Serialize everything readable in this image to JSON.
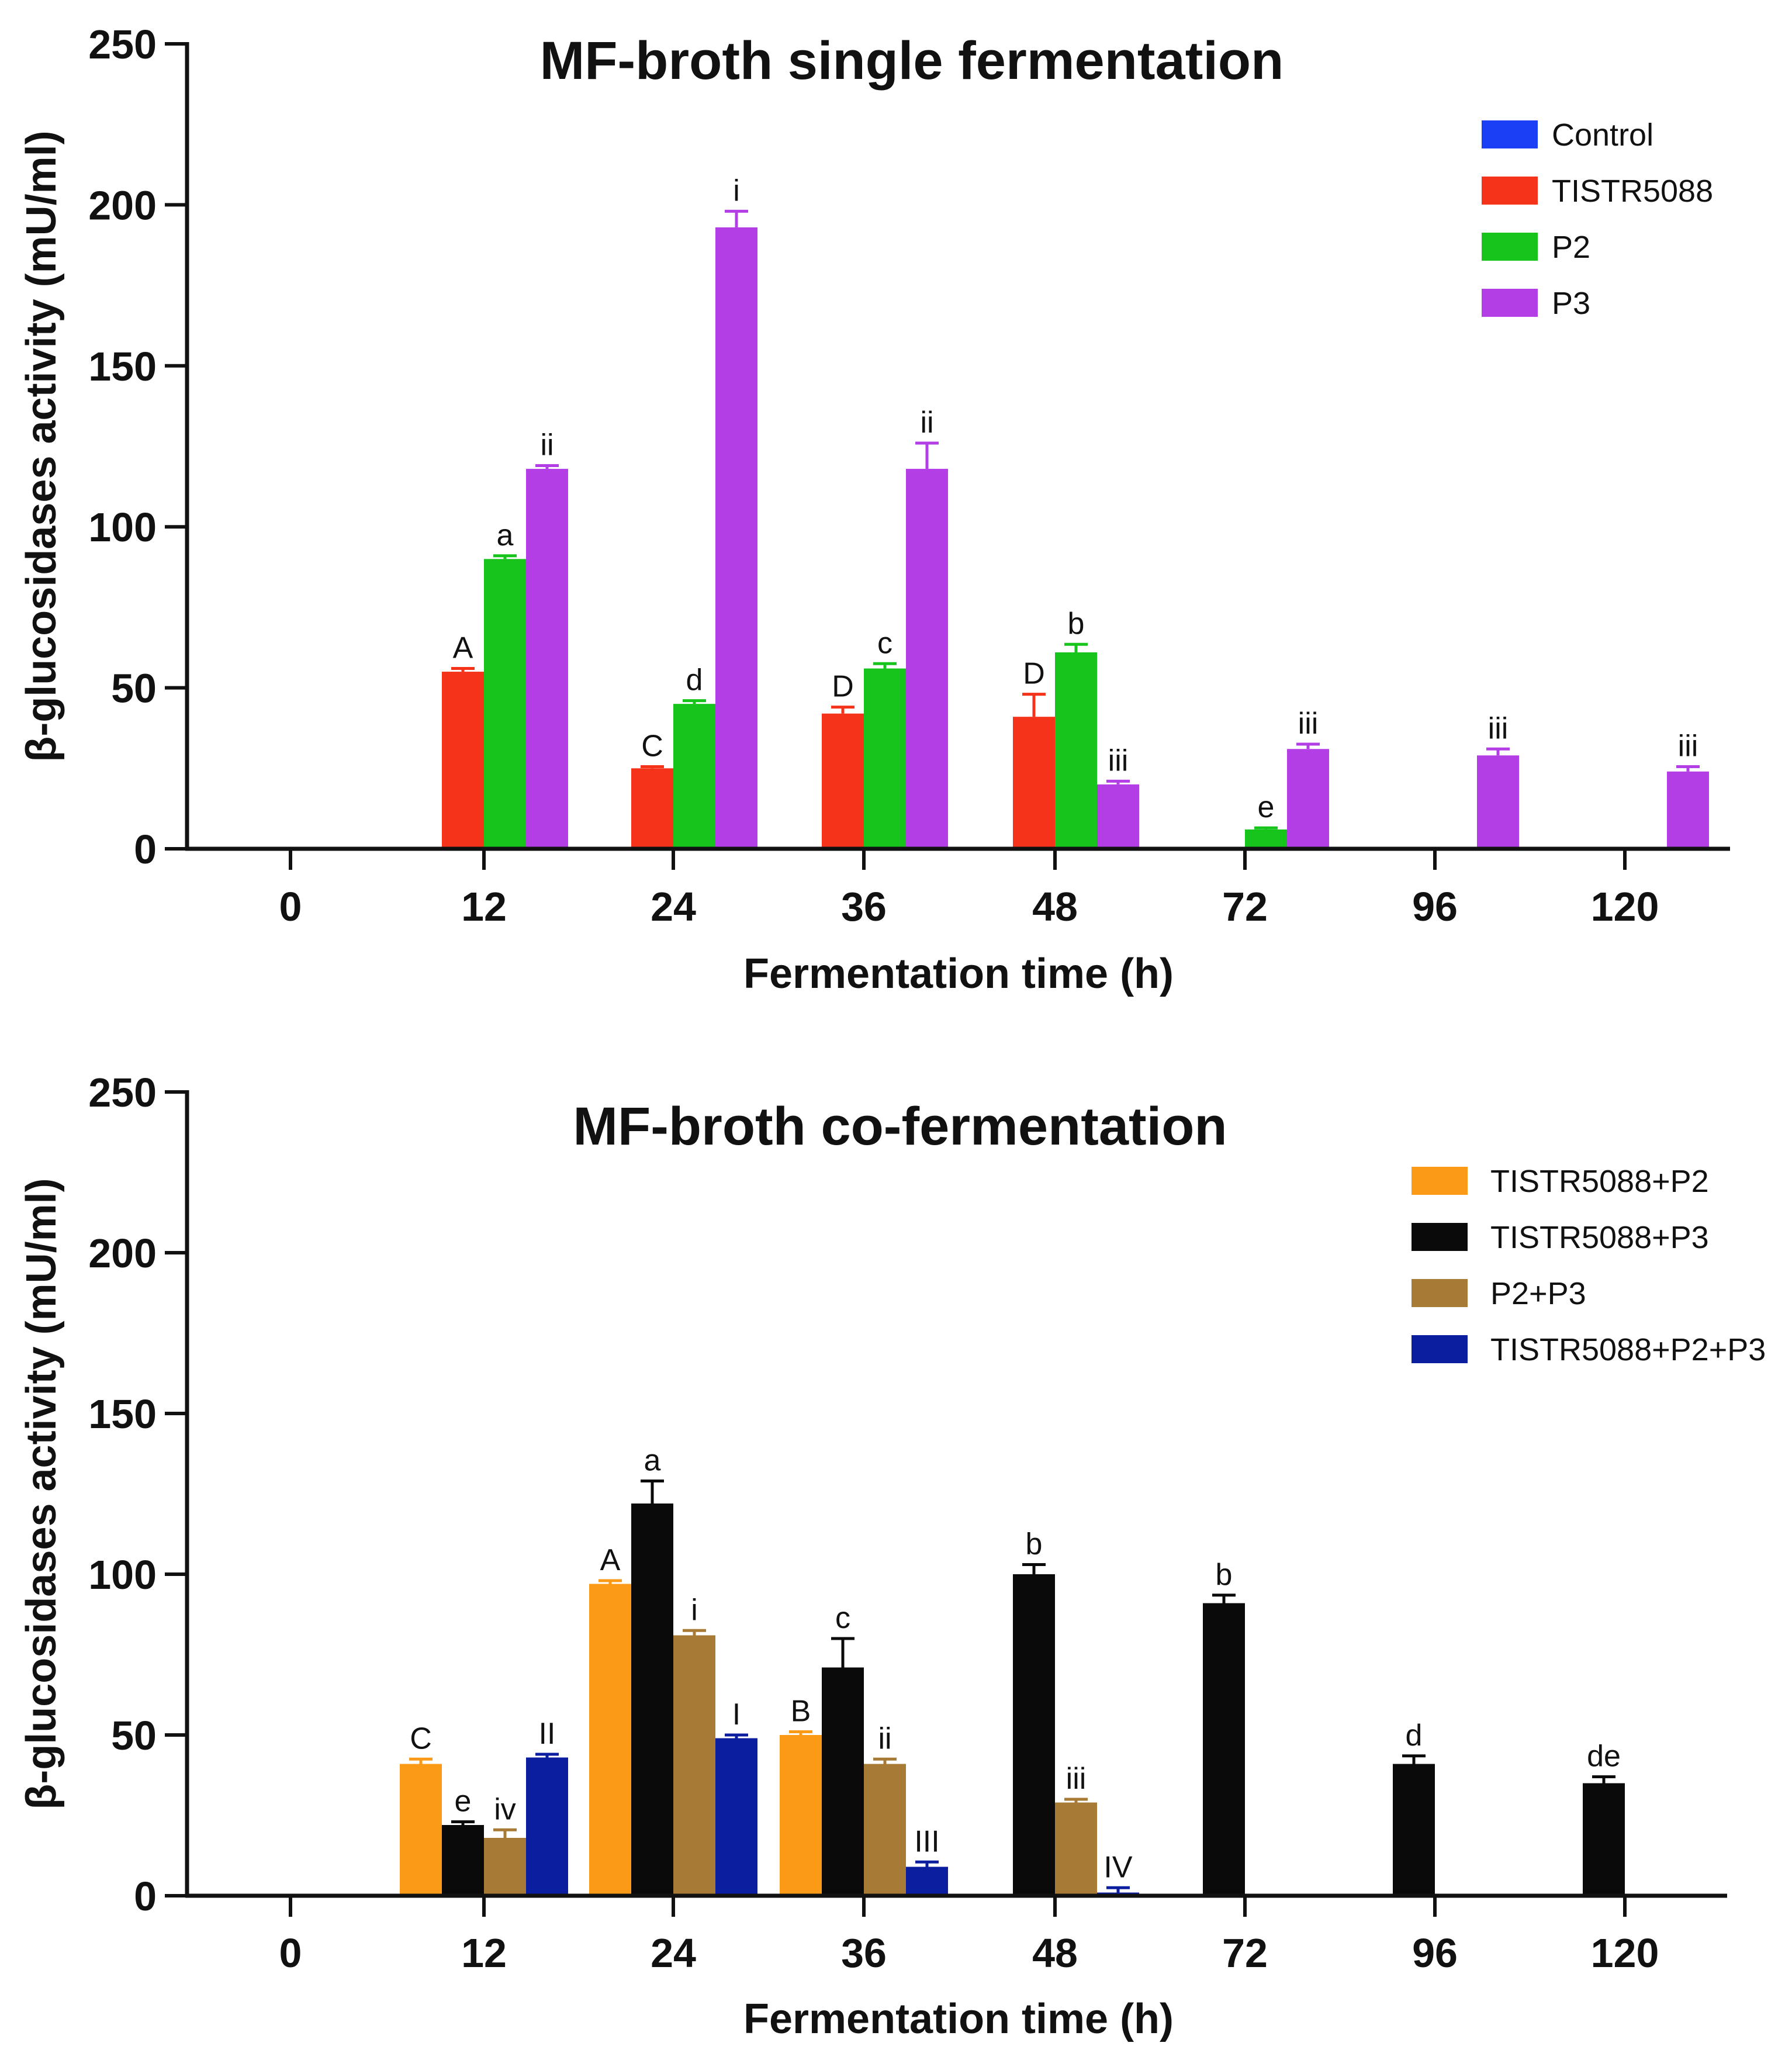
{
  "chart_data": [
    {
      "type": "bar",
      "title": "MF-broth single fermentation",
      "xlabel": "Fermentation time (h)",
      "ylabel": "β-glucosidases activity  (mU/ml)",
      "ylim": [
        0,
        250
      ],
      "yticks": [
        "0",
        "50",
        "100",
        "150",
        "200",
        "250"
      ],
      "categories": [
        "0",
        "12",
        "24",
        "36",
        "48",
        "72",
        "96",
        "120"
      ],
      "legend_position": "top-right",
      "series": [
        {
          "name": "Control",
          "color": "#1a3ff5",
          "values": [
            0,
            0,
            0,
            0,
            0,
            0,
            0,
            0
          ],
          "errors": [
            0,
            0,
            0,
            0,
            0,
            0,
            0,
            0
          ],
          "labels": [
            "",
            "",
            "",
            "",
            "",
            "",
            "",
            ""
          ]
        },
        {
          "name": "TISTR5088",
          "color": "#f5331b",
          "values": [
            0,
            55,
            25,
            42,
            41,
            0,
            0,
            0
          ],
          "errors": [
            0,
            1,
            0.5,
            2,
            7,
            0,
            0,
            0
          ],
          "labels": [
            "",
            "A",
            "C",
            "D",
            "D",
            "",
            "",
            ""
          ]
        },
        {
          "name": "P2",
          "color": "#16c41c",
          "values": [
            0,
            90,
            45,
            56,
            61,
            6,
            0,
            0
          ],
          "errors": [
            0,
            1,
            1,
            1.5,
            2.5,
            0.5,
            0,
            0
          ],
          "labels": [
            "",
            "a",
            "d",
            "c",
            "b",
            "e",
            "",
            ""
          ]
        },
        {
          "name": "P3",
          "color": "#b43ee6",
          "values": [
            0,
            118,
            193,
            118,
            20,
            31,
            29,
            24
          ],
          "errors": [
            0,
            1,
            5,
            8,
            1,
            1.5,
            2,
            1.5
          ],
          "labels": [
            "",
            "ii",
            "i",
            "ii",
            "iii",
            "iii",
            "iii",
            "iii"
          ]
        }
      ]
    },
    {
      "type": "bar",
      "title": "MF-broth co-fermentation",
      "xlabel": "Fermentation time (h)",
      "ylabel": "β-glucosidases activity  (mU/ml)",
      "ylim": [
        0,
        250
      ],
      "yticks": [
        "0",
        "50",
        "100",
        "150",
        "200",
        "250"
      ],
      "categories": [
        "0",
        "12",
        "24",
        "36",
        "48",
        "72",
        "96",
        "120"
      ],
      "legend_position": "top-right",
      "series": [
        {
          "name": "TISTR5088+P2",
          "color": "#fb9a16",
          "values": [
            0,
            41,
            97,
            50,
            0,
            0,
            0,
            0
          ],
          "errors": [
            0,
            1.5,
            1,
            1,
            0,
            0,
            0,
            0
          ],
          "labels": [
            "",
            "C",
            "A",
            "B",
            "",
            "",
            "",
            ""
          ]
        },
        {
          "name": "TISTR5088+P3",
          "color": "#0a0a0a",
          "values": [
            0,
            22,
            122,
            71,
            100,
            91,
            41,
            35
          ],
          "errors": [
            0,
            1,
            7,
            9,
            3,
            2.5,
            2.5,
            2
          ],
          "labels": [
            "",
            "e",
            "a",
            "c",
            "b",
            "b",
            "d",
            "de"
          ]
        },
        {
          "name": "P2+P3",
          "color": "#a77a36",
          "values": [
            0,
            18,
            81,
            41,
            29,
            0,
            0,
            0
          ],
          "errors": [
            0,
            2.5,
            1.5,
            1.5,
            1,
            0,
            0,
            0
          ],
          "labels": [
            "",
            "iv",
            "i",
            "ii",
            "iii",
            "",
            "",
            ""
          ]
        },
        {
          "name": "TISTR5088+P2+P3",
          "color": "#0c1ea0",
          "values": [
            0,
            43,
            49,
            9,
            1,
            0,
            0,
            0
          ],
          "errors": [
            0,
            1,
            1,
            1.5,
            1.5,
            0,
            0,
            0
          ],
          "labels": [
            "",
            "II",
            "I",
            "III",
            "IV",
            "",
            "",
            ""
          ]
        }
      ]
    }
  ]
}
